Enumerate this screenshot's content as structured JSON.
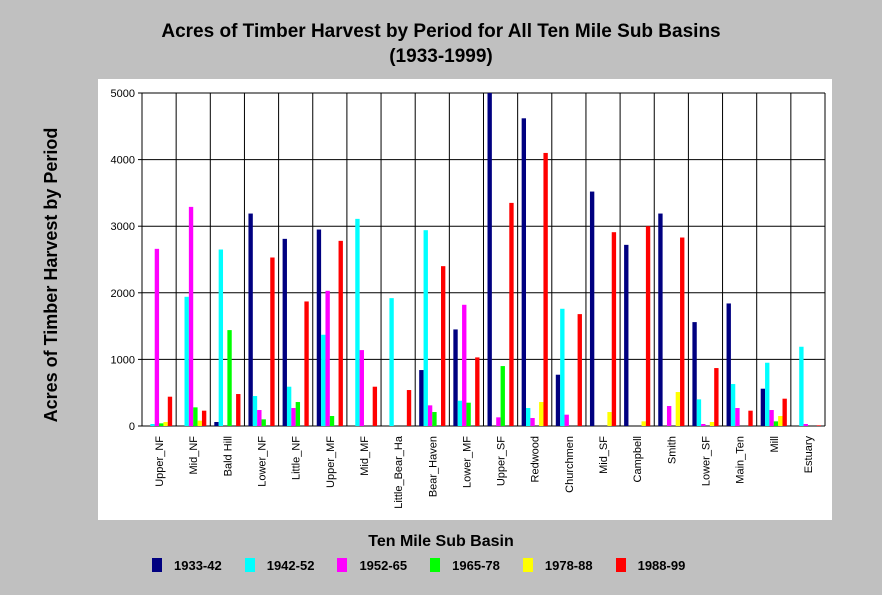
{
  "chart_data": {
    "type": "bar",
    "title": "Acres of Timber Harvest by Period for All Ten Mile Sub Basins",
    "subtitle": "(1933-1999)",
    "xlabel": "Ten Mile Sub Basin",
    "ylabel": "Acres of Timber Harvest by Period",
    "ylim": [
      0,
      5000
    ],
    "yticks": [
      "0",
      "1000",
      "2000",
      "3000",
      "4000",
      "5000"
    ],
    "grid": true,
    "legend_position": "bottom",
    "categories": [
      "Upper_NF",
      "Mid_NF",
      "Bald Hill",
      "Lower_NF",
      "Little_NF",
      "Upper_MF",
      "Mid_MF",
      "Little_Bear_Ha",
      "Bear_Haven",
      "Lower_MF",
      "Upper_SF",
      "Redwood",
      "Churchmen",
      "Mid_SF",
      "Campbell",
      "Smith",
      "Lower_SF",
      "Main_Ten",
      "Mill",
      "Estuary"
    ],
    "series": [
      {
        "name": "1933-42",
        "color": "#000080",
        "values": [
          0,
          0,
          60,
          3190,
          2810,
          2950,
          0,
          0,
          840,
          1450,
          5000,
          4620,
          770,
          3520,
          2720,
          3190,
          1560,
          1840,
          560,
          0
        ]
      },
      {
        "name": "1942-52",
        "color": "#00ffff",
        "values": [
          30,
          1940,
          2650,
          450,
          590,
          1370,
          3110,
          1920,
          2940,
          380,
          0,
          270,
          1760,
          0,
          0,
          0,
          400,
          630,
          950,
          1190
        ]
      },
      {
        "name": "1952-65",
        "color": "#ff00ff",
        "values": [
          2660,
          3290,
          0,
          240,
          270,
          2030,
          1140,
          0,
          310,
          1820,
          130,
          120,
          170,
          0,
          0,
          300,
          30,
          270,
          240,
          30
        ]
      },
      {
        "name": "1965-78",
        "color": "#00ff00",
        "values": [
          40,
          280,
          1440,
          100,
          360,
          150,
          0,
          0,
          210,
          350,
          900,
          0,
          0,
          0,
          0,
          0,
          0,
          0,
          70,
          0
        ]
      },
      {
        "name": "1978-88",
        "color": "#ffff00",
        "values": [
          60,
          80,
          0,
          0,
          0,
          0,
          0,
          0,
          0,
          0,
          0,
          360,
          0,
          210,
          70,
          510,
          60,
          0,
          150,
          0
        ]
      },
      {
        "name": "1988-99",
        "color": "#ff0000",
        "values": [
          440,
          230,
          480,
          2530,
          1870,
          2780,
          590,
          540,
          2400,
          1030,
          3350,
          4100,
          1680,
          2910,
          3000,
          2830,
          870,
          230,
          410,
          10
        ]
      }
    ]
  }
}
